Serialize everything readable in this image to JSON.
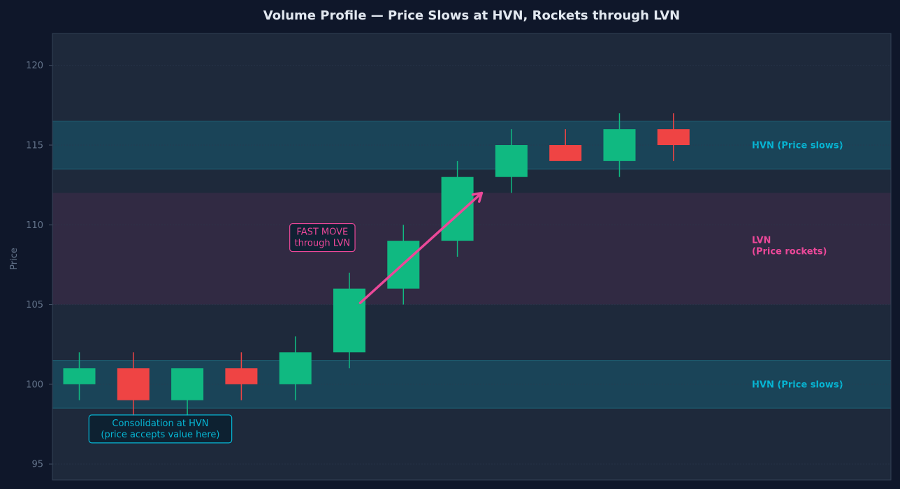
{
  "chart_data": {
    "type": "candlestick",
    "title": "Volume Profile — Price Slows at HVN, Rockets through LVN",
    "ylabel": "Price",
    "ylim": [
      94,
      122
    ],
    "yticks": [
      95,
      100,
      105,
      110,
      115,
      120
    ],
    "grid": true,
    "candles": [
      {
        "open": 100,
        "high": 102,
        "low": 99,
        "close": 101
      },
      {
        "open": 101,
        "high": 102,
        "low": 98,
        "close": 99
      },
      {
        "open": 99,
        "high": 101,
        "low": 98,
        "close": 101
      },
      {
        "open": 101,
        "high": 102,
        "low": 99,
        "close": 100
      },
      {
        "open": 100,
        "high": 103,
        "low": 99,
        "close": 102
      },
      {
        "open": 102,
        "high": 107,
        "low": 101,
        "close": 106
      },
      {
        "open": 106,
        "high": 110,
        "low": 105,
        "close": 109
      },
      {
        "open": 109,
        "high": 114,
        "low": 108,
        "close": 113
      },
      {
        "open": 113,
        "high": 116,
        "low": 112,
        "close": 115
      },
      {
        "open": 115,
        "high": 116,
        "low": 114,
        "close": 114
      },
      {
        "open": 114,
        "high": 117,
        "low": 113,
        "close": 116
      },
      {
        "open": 116,
        "high": 117,
        "low": 114,
        "close": 115
      }
    ],
    "zones": [
      {
        "kind": "HVN",
        "from": 113.5,
        "to": 116.5,
        "label": "HVN (Price slows)",
        "label_price": 115
      },
      {
        "kind": "LVN",
        "from": 105,
        "to": 112,
        "label_lines": [
          "LVN",
          "(Price rockets)"
        ],
        "label_price": 108.5
      },
      {
        "kind": "HVN",
        "from": 98.5,
        "to": 101.5,
        "label": "HVN (Price slows)",
        "label_price": 100
      }
    ],
    "annotations": [
      {
        "lines": [
          "Consolidation at HVN",
          "(price accepts value here)"
        ],
        "candle": 1.5,
        "price": 97.2,
        "color": "#06b6d4"
      },
      {
        "lines": [
          "FAST MOVE",
          "through LVN"
        ],
        "candle": 4.5,
        "price": 109.2,
        "color": "#ec4899"
      }
    ],
    "arrow": {
      "from_candle": 5.2,
      "from_price": 105.1,
      "to_candle": 7.45,
      "to_price": 112
    },
    "colors": {
      "up": "#10b981",
      "down": "#ef4444",
      "hvn_band": "#1a4458",
      "hvn_text": "#06b6d4",
      "lvn_band": "#312a43",
      "lvn_text": "#ec4899",
      "plot_bg": "#1e293b",
      "page_bg": "#0f172a",
      "title": "#e2e8f0",
      "axis_text": "#64748b",
      "arrow": "#ec4899"
    }
  }
}
